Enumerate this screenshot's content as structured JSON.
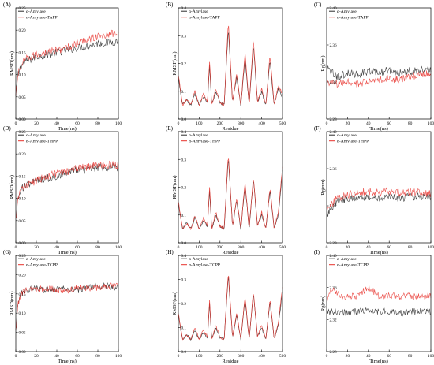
{
  "colors": {
    "series1": "#2b2b2b",
    "series2": "#e8302a",
    "axis": "#000000"
  },
  "chart_data": [
    {
      "type": "line",
      "panel_label": "(A)",
      "xlabel": "Time(ns)",
      "ylabel": "RMSD(nm)",
      "xlim": [
        0,
        100
      ],
      "ylim": [
        0.0,
        0.25
      ],
      "xticks": [
        "0",
        "20",
        "40",
        "60",
        "80",
        "100"
      ],
      "yticks": [
        "0.00",
        "0.05",
        "0.10",
        "0.15",
        "0.20",
        "0.25"
      ],
      "legend": [
        "α-Amylase",
        "α-Amylase-TAPP"
      ],
      "legend_position": "top-left",
      "series": [
        {
          "name": "α-Amylase",
          "x": [
            0,
            2,
            5,
            10,
            20,
            30,
            40,
            50,
            60,
            70,
            80,
            90,
            100
          ],
          "values": [
            0.05,
            0.1,
            0.12,
            0.13,
            0.14,
            0.145,
            0.15,
            0.155,
            0.16,
            0.165,
            0.17,
            0.172,
            0.175
          ]
        },
        {
          "name": "α-Amylase-TAPP",
          "x": [
            0,
            2,
            5,
            10,
            20,
            30,
            40,
            50,
            60,
            70,
            80,
            90,
            100
          ],
          "values": [
            0.05,
            0.1,
            0.12,
            0.135,
            0.145,
            0.15,
            0.155,
            0.16,
            0.17,
            0.18,
            0.185,
            0.19,
            0.195
          ]
        }
      ]
    },
    {
      "type": "line",
      "panel_label": "(B)",
      "xlabel": "Residue",
      "ylabel": "RMSF(nm)",
      "xlim": [
        0,
        500
      ],
      "ylim": [
        0.0,
        0.4
      ],
      "xticks": [
        "0",
        "100",
        "200",
        "300",
        "400",
        "500"
      ],
      "yticks": [
        "0.0",
        "0.1",
        "0.2",
        "0.3",
        "0.4"
      ],
      "legend": [
        "α-Amylase",
        "α-Amylase-TAPP"
      ],
      "legend_position": "top-left",
      "series": [
        {
          "name": "α-Amylase",
          "x": [
            0,
            20,
            40,
            60,
            80,
            100,
            120,
            140,
            150,
            160,
            180,
            200,
            220,
            240,
            260,
            280,
            300,
            320,
            340,
            360,
            380,
            400,
            420,
            440,
            460,
            480,
            500
          ],
          "values": [
            0.15,
            0.05,
            0.07,
            0.05,
            0.09,
            0.05,
            0.08,
            0.06,
            0.19,
            0.05,
            0.1,
            0.06,
            0.05,
            0.33,
            0.06,
            0.15,
            0.05,
            0.22,
            0.05,
            0.27,
            0.06,
            0.1,
            0.05,
            0.21,
            0.05,
            0.11,
            0.08
          ]
        },
        {
          "name": "α-Amylase-TAPP",
          "x": [
            0,
            20,
            40,
            60,
            80,
            100,
            120,
            140,
            150,
            160,
            180,
            200,
            220,
            240,
            260,
            280,
            300,
            320,
            340,
            360,
            380,
            400,
            420,
            440,
            460,
            480,
            500
          ],
          "values": [
            0.16,
            0.05,
            0.07,
            0.05,
            0.1,
            0.05,
            0.09,
            0.06,
            0.21,
            0.05,
            0.11,
            0.06,
            0.05,
            0.35,
            0.06,
            0.16,
            0.05,
            0.24,
            0.05,
            0.29,
            0.06,
            0.11,
            0.05,
            0.23,
            0.05,
            0.12,
            0.09
          ]
        }
      ]
    },
    {
      "type": "line",
      "panel_label": "(C)",
      "xlabel": "Time(ns)",
      "ylabel": "Rg(nm)",
      "xlim": [
        0,
        100
      ],
      "ylim": [
        2.28,
        2.4
      ],
      "xticks": [
        "0",
        "20",
        "40",
        "60",
        "80",
        "100"
      ],
      "yticks": [
        "2.28",
        "2.32",
        "2.36",
        "2.40"
      ],
      "legend": [
        "α-Amylase",
        "α-Amylase-TAPP"
      ],
      "legend_position": "top-left",
      "series": [
        {
          "name": "α-Amylase",
          "x": [
            0,
            10,
            20,
            30,
            40,
            50,
            60,
            70,
            80,
            90,
            100
          ],
          "values": [
            2.335,
            2.325,
            2.33,
            2.328,
            2.332,
            2.33,
            2.333,
            2.33,
            2.332,
            2.333,
            2.335
          ]
        },
        {
          "name": "α-Amylase-TAPP",
          "x": [
            0,
            10,
            20,
            30,
            40,
            50,
            60,
            70,
            80,
            90,
            100
          ],
          "values": [
            2.32,
            2.318,
            2.32,
            2.318,
            2.32,
            2.322,
            2.324,
            2.322,
            2.326,
            2.328,
            2.33
          ]
        }
      ]
    },
    {
      "type": "line",
      "panel_label": "(D)",
      "xlabel": "Time(ns)",
      "ylabel": "RMSD(nm)",
      "xlim": [
        0,
        100
      ],
      "ylim": [
        0.0,
        0.25
      ],
      "xticks": [
        "0",
        "20",
        "40",
        "60",
        "80",
        "100"
      ],
      "yticks": [
        "0.00",
        "0.05",
        "0.10",
        "0.15",
        "0.20",
        "0.25"
      ],
      "legend": [
        "α-Amylase",
        "α-Amylase-THPP"
      ],
      "legend_position": "top-left",
      "series": [
        {
          "name": "α-Amylase",
          "x": [
            0,
            2,
            5,
            10,
            20,
            30,
            40,
            50,
            60,
            70,
            80,
            90,
            100
          ],
          "values": [
            0.05,
            0.1,
            0.12,
            0.13,
            0.14,
            0.145,
            0.15,
            0.16,
            0.165,
            0.165,
            0.17,
            0.17,
            0.17
          ]
        },
        {
          "name": "α-Amylase-THPP",
          "x": [
            0,
            2,
            5,
            10,
            20,
            30,
            40,
            50,
            60,
            70,
            80,
            90,
            100
          ],
          "values": [
            0.05,
            0.1,
            0.12,
            0.13,
            0.14,
            0.15,
            0.155,
            0.16,
            0.17,
            0.17,
            0.175,
            0.175,
            0.175
          ]
        }
      ]
    },
    {
      "type": "line",
      "panel_label": "(E)",
      "xlabel": "Residue",
      "ylabel": "RMSF(nm)",
      "xlim": [
        0,
        500
      ],
      "ylim": [
        0.0,
        0.4
      ],
      "xticks": [
        "0",
        "100",
        "200",
        "300",
        "400",
        "500"
      ],
      "yticks": [
        "0.0",
        "0.1",
        "0.2",
        "0.3",
        "0.4"
      ],
      "legend": [
        "α-Amylase",
        "α-Amylase-THPP"
      ],
      "legend_position": "top-left",
      "series": [
        {
          "name": "α-Amylase",
          "x": [
            0,
            20,
            40,
            60,
            80,
            100,
            120,
            140,
            150,
            160,
            180,
            200,
            220,
            240,
            260,
            280,
            300,
            320,
            340,
            360,
            380,
            400,
            420,
            440,
            460,
            480,
            500
          ],
          "values": [
            0.14,
            0.05,
            0.07,
            0.05,
            0.09,
            0.05,
            0.08,
            0.06,
            0.19,
            0.05,
            0.1,
            0.06,
            0.05,
            0.31,
            0.06,
            0.15,
            0.05,
            0.21,
            0.05,
            0.23,
            0.06,
            0.1,
            0.05,
            0.19,
            0.05,
            0.1,
            0.26
          ]
        },
        {
          "name": "α-Amylase-THPP",
          "x": [
            0,
            20,
            40,
            60,
            80,
            100,
            120,
            140,
            150,
            160,
            180,
            200,
            220,
            240,
            260,
            280,
            300,
            320,
            340,
            360,
            380,
            400,
            420,
            440,
            460,
            480,
            500
          ],
          "values": [
            0.15,
            0.05,
            0.07,
            0.05,
            0.1,
            0.05,
            0.09,
            0.06,
            0.2,
            0.05,
            0.11,
            0.06,
            0.05,
            0.32,
            0.06,
            0.16,
            0.05,
            0.22,
            0.05,
            0.24,
            0.06,
            0.11,
            0.05,
            0.2,
            0.05,
            0.11,
            0.27
          ]
        }
      ]
    },
    {
      "type": "line",
      "panel_label": "(F)",
      "xlabel": "Time(ns)",
      "ylabel": "Rg(nm)",
      "xlim": [
        0,
        100
      ],
      "ylim": [
        2.28,
        2.4
      ],
      "xticks": [
        "0",
        "20",
        "40",
        "60",
        "80",
        "100"
      ],
      "yticks": [
        "2.28",
        "2.32",
        "2.36",
        "2.40"
      ],
      "legend": [
        "α-Amylase",
        "α-Amylase-THPP"
      ],
      "legend_position": "top-left",
      "series": [
        {
          "name": "α-Amylase",
          "x": [
            0,
            10,
            20,
            30,
            40,
            50,
            60,
            70,
            80,
            90,
            100
          ],
          "values": [
            2.31,
            2.325,
            2.328,
            2.33,
            2.33,
            2.328,
            2.33,
            2.328,
            2.33,
            2.33,
            2.328
          ]
        },
        {
          "name": "α-Amylase-THPP",
          "x": [
            0,
            10,
            20,
            30,
            40,
            50,
            60,
            70,
            80,
            90,
            100
          ],
          "values": [
            2.315,
            2.328,
            2.332,
            2.334,
            2.336,
            2.334,
            2.336,
            2.334,
            2.335,
            2.334,
            2.333
          ]
        }
      ]
    },
    {
      "type": "line",
      "panel_label": "(G)",
      "xlabel": "Time(ns)",
      "ylabel": "RMSD(nm)",
      "xlim": [
        0,
        100
      ],
      "ylim": [
        0.0,
        0.25
      ],
      "xticks": [
        "0",
        "20",
        "40",
        "60",
        "80",
        "100"
      ],
      "yticks": [
        "0.00",
        "0.05",
        "0.10",
        "0.15",
        "0.20",
        "0.25"
      ],
      "legend": [
        "α-Amylase",
        "α-Amylase-TCPP"
      ],
      "legend_position": "top-left",
      "series": [
        {
          "name": "α-Amylase",
          "x": [
            0,
            2,
            5,
            10,
            20,
            30,
            40,
            50,
            60,
            70,
            80,
            90,
            100
          ],
          "values": [
            0.05,
            0.12,
            0.15,
            0.16,
            0.165,
            0.16,
            0.165,
            0.165,
            0.16,
            0.165,
            0.17,
            0.17,
            0.165
          ]
        },
        {
          "name": "α-Amylase-TCPP",
          "x": [
            0,
            2,
            5,
            10,
            20,
            30,
            40,
            50,
            60,
            70,
            80,
            90,
            100
          ],
          "values": [
            0.05,
            0.12,
            0.15,
            0.16,
            0.16,
            0.165,
            0.16,
            0.16,
            0.165,
            0.165,
            0.165,
            0.17,
            0.17
          ]
        }
      ]
    },
    {
      "type": "line",
      "panel_label": "(H)",
      "xlabel": "Residue",
      "ylabel": "RMSF(nm)",
      "xlim": [
        0,
        500
      ],
      "ylim": [
        0.0,
        0.4
      ],
      "xticks": [
        "0",
        "100",
        "200",
        "300",
        "400",
        "500"
      ],
      "yticks": [
        "0.0",
        "0.1",
        "0.2",
        "0.3",
        "0.4"
      ],
      "legend": [
        "α-Amylase",
        "α-Amylase-TCPP"
      ],
      "legend_position": "top-left",
      "series": [
        {
          "name": "α-Amylase",
          "x": [
            0,
            20,
            40,
            60,
            80,
            100,
            120,
            140,
            150,
            160,
            180,
            200,
            220,
            240,
            260,
            280,
            300,
            320,
            340,
            360,
            380,
            400,
            420,
            440,
            460,
            480,
            500
          ],
          "values": [
            0.15,
            0.05,
            0.07,
            0.05,
            0.09,
            0.05,
            0.08,
            0.06,
            0.2,
            0.05,
            0.1,
            0.06,
            0.05,
            0.32,
            0.06,
            0.15,
            0.05,
            0.22,
            0.05,
            0.24,
            0.06,
            0.1,
            0.05,
            0.21,
            0.05,
            0.11,
            0.25
          ]
        },
        {
          "name": "α-Amylase-TCPP",
          "x": [
            0,
            20,
            40,
            60,
            80,
            100,
            120,
            140,
            150,
            160,
            180,
            200,
            220,
            240,
            260,
            280,
            300,
            320,
            340,
            360,
            380,
            400,
            420,
            440,
            460,
            480,
            500
          ],
          "values": [
            0.16,
            0.05,
            0.07,
            0.05,
            0.1,
            0.05,
            0.09,
            0.06,
            0.21,
            0.05,
            0.11,
            0.06,
            0.05,
            0.33,
            0.06,
            0.16,
            0.05,
            0.23,
            0.05,
            0.25,
            0.06,
            0.11,
            0.05,
            0.22,
            0.05,
            0.12,
            0.27
          ]
        }
      ]
    },
    {
      "type": "line",
      "panel_label": "(I)",
      "xlabel": "Time(ns)",
      "ylabel": "Rg(nm)",
      "xlim": [
        0,
        100
      ],
      "ylim": [
        2.28,
        2.4
      ],
      "xticks": [
        "0",
        "20",
        "40",
        "60",
        "80",
        "100"
      ],
      "yticks": [
        "2.28",
        "2.32",
        "2.36",
        "2.40"
      ],
      "legend": [
        "α-Amylase",
        "α-Amylase-TCPP"
      ],
      "legend_position": "top-left",
      "series": [
        {
          "name": "α-Amylase",
          "x": [
            0,
            10,
            20,
            30,
            40,
            50,
            60,
            70,
            80,
            90,
            100
          ],
          "values": [
            2.33,
            2.33,
            2.328,
            2.33,
            2.332,
            2.33,
            2.33,
            2.328,
            2.33,
            2.33,
            2.33
          ]
        },
        {
          "name": "α-Amylase-TCPP",
          "x": [
            0,
            5,
            10,
            20,
            30,
            40,
            50,
            60,
            70,
            80,
            90,
            100
          ],
          "values": [
            2.34,
            2.36,
            2.352,
            2.348,
            2.35,
            2.36,
            2.35,
            2.35,
            2.348,
            2.35,
            2.348,
            2.35
          ]
        }
      ]
    }
  ]
}
